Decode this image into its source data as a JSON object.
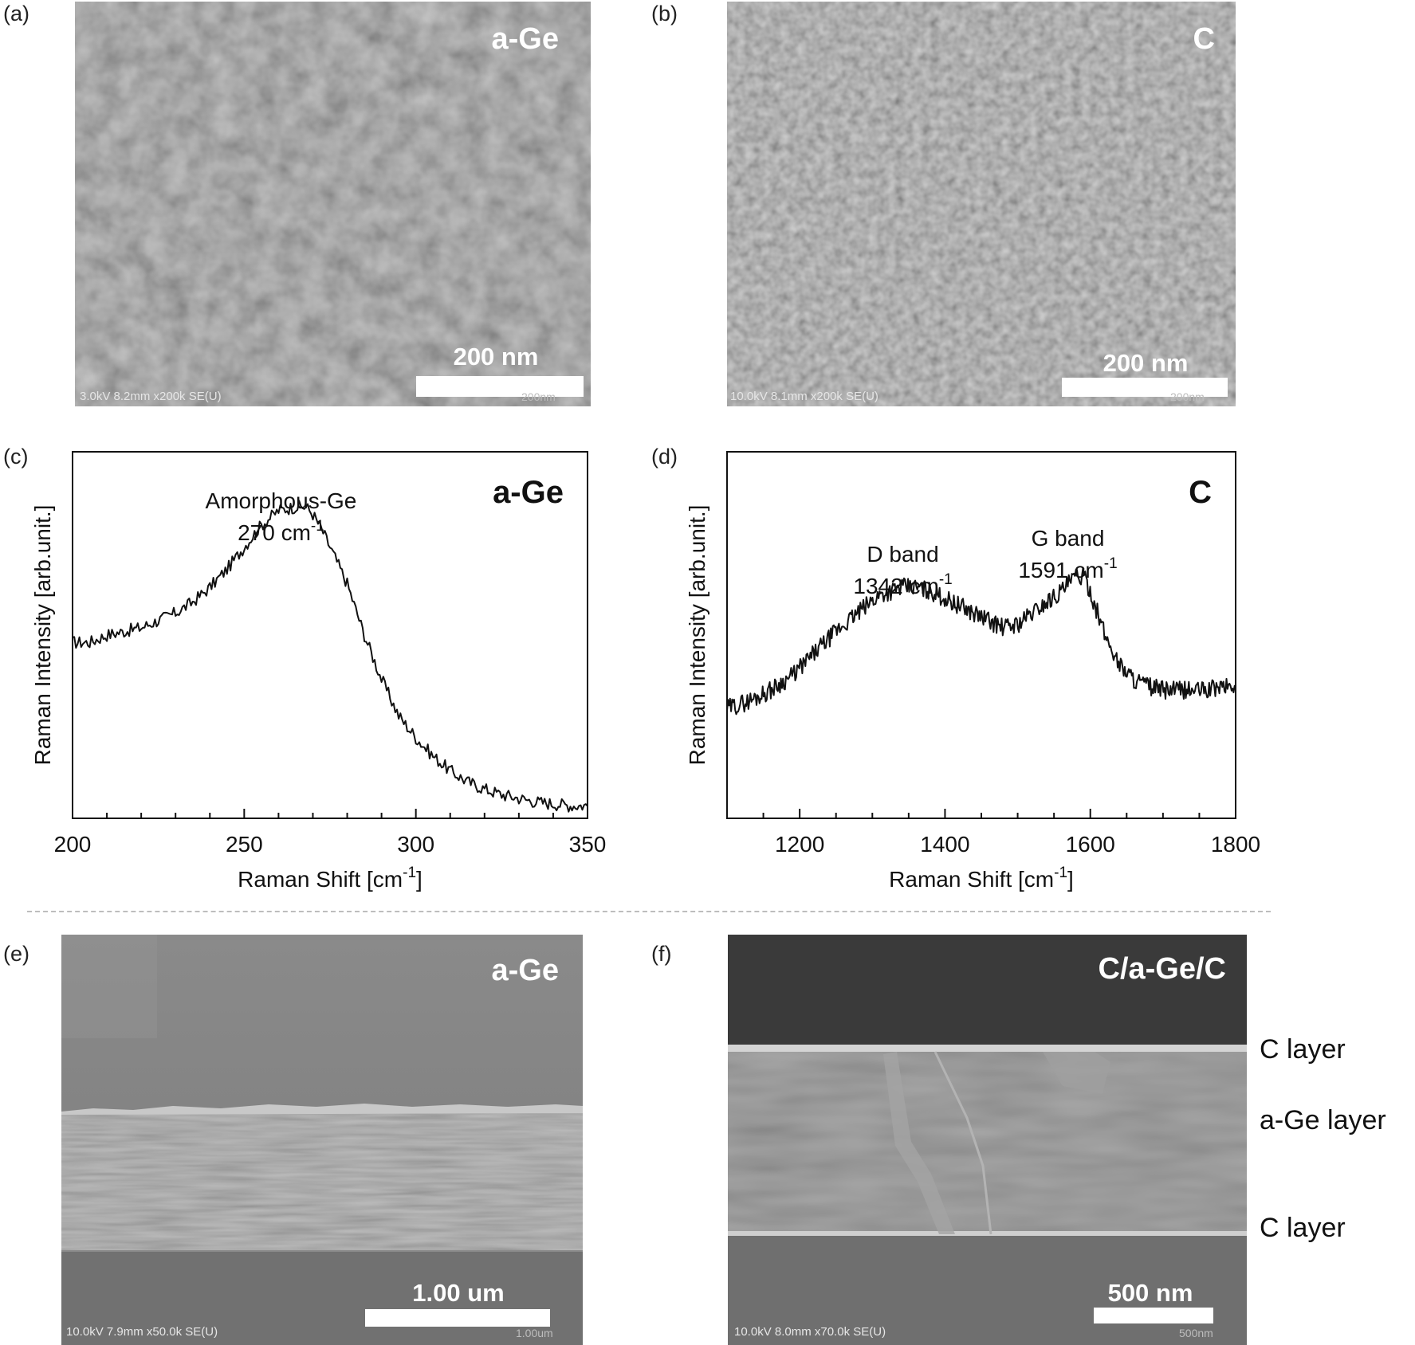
{
  "panels": {
    "a": {
      "label": "(a)",
      "tag": "a-Ge",
      "scalebar": "200 nm",
      "meta": "3.0kV 8.2mm x200k SE(U)",
      "meta_right": "200nm"
    },
    "b": {
      "label": "(b)",
      "tag": "C",
      "scalebar": "200 nm",
      "meta": "10.0kV 8.1mm x200k SE(U)",
      "meta_right": "200nm"
    },
    "c": {
      "label": "(c)"
    },
    "d": {
      "label": "(d)"
    },
    "e": {
      "label": "(e)",
      "tag": "a-Ge",
      "scalebar": "1.00 um",
      "meta": "10.0kV 7.9mm x50.0k SE(U)",
      "meta_right": "1.00um"
    },
    "f": {
      "label": "(f)",
      "tag": "C/a-Ge/C",
      "scalebar": "500 nm",
      "meta": "10.0kV 8.0mm x70.0k SE(U)",
      "meta_right": "500nm",
      "layers": [
        "C layer",
        "a-Ge layer",
        "C layer"
      ]
    }
  },
  "chart_data": [
    {
      "type": "line",
      "panel": "c",
      "tag": "a-Ge",
      "xlabel": "Raman Shift [cm",
      "xlabel_sup": "-1",
      "xlabel_end": "]",
      "ylabel": "Raman Intensity [arb.unit.]",
      "xlim": [
        200,
        350
      ],
      "ylim": [
        0,
        1
      ],
      "x_ticks": [
        200,
        250,
        300,
        350
      ],
      "y_ticks": [],
      "annotations": [
        {
          "line1": "Amorphous-Ge",
          "line2": "270 cm",
          "line2_sup": "-1",
          "x": 270
        }
      ],
      "series": [
        {
          "x": [
            200,
            205,
            210,
            215,
            220,
            225,
            230,
            235,
            240,
            245,
            250,
            255,
            260,
            265,
            268,
            270,
            273,
            276,
            280,
            285,
            290,
            295,
            300,
            305,
            310,
            315,
            320,
            325,
            330,
            335,
            340,
            345,
            350
          ],
          "y": [
            0.48,
            0.48,
            0.5,
            0.51,
            0.52,
            0.54,
            0.56,
            0.59,
            0.63,
            0.68,
            0.74,
            0.8,
            0.84,
            0.85,
            0.85,
            0.83,
            0.78,
            0.72,
            0.64,
            0.5,
            0.38,
            0.28,
            0.22,
            0.17,
            0.13,
            0.1,
            0.08,
            0.065,
            0.055,
            0.045,
            0.04,
            0.035,
            0.035
          ]
        }
      ]
    },
    {
      "type": "line",
      "panel": "d",
      "tag": "C",
      "xlabel": "Raman Shift [cm",
      "xlabel_sup": "-1",
      "xlabel_end": "]",
      "ylabel": "Raman Intensity [arb.unit.]",
      "xlim": [
        1100,
        1800
      ],
      "ylim": [
        0,
        1
      ],
      "x_ticks": [
        1200,
        1400,
        1600,
        1800
      ],
      "y_ticks": [],
      "annotations": [
        {
          "line1": "D band",
          "line2": "1342 cm",
          "line2_sup": "-1",
          "x": 1342
        },
        {
          "line1": "G band",
          "line2": "1591 cm",
          "line2_sup": "-1",
          "x": 1591
        }
      ],
      "series": [
        {
          "x": [
            1100,
            1130,
            1160,
            1190,
            1220,
            1250,
            1280,
            1310,
            1340,
            1360,
            1380,
            1400,
            1420,
            1440,
            1460,
            1480,
            1500,
            1520,
            1540,
            1560,
            1580,
            1590,
            1600,
            1620,
            1640,
            1660,
            1680,
            1700,
            1720,
            1740,
            1760,
            1780,
            1800
          ],
          "y": [
            0.3,
            0.32,
            0.35,
            0.39,
            0.45,
            0.51,
            0.56,
            0.61,
            0.63,
            0.63,
            0.62,
            0.6,
            0.58,
            0.56,
            0.54,
            0.52,
            0.53,
            0.56,
            0.59,
            0.62,
            0.66,
            0.66,
            0.62,
            0.5,
            0.42,
            0.38,
            0.36,
            0.35,
            0.35,
            0.35,
            0.35,
            0.36,
            0.36
          ]
        }
      ]
    }
  ]
}
